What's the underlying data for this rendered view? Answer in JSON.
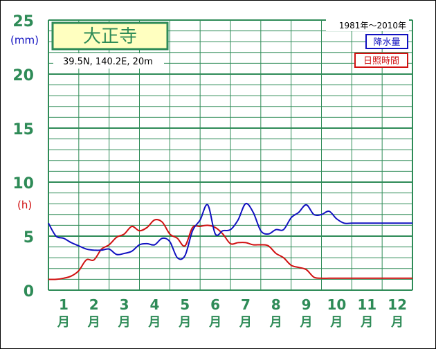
{
  "chart_data": {
    "type": "line",
    "title": "大正寺",
    "subtitle": "39.5N,  140.2E,  20m",
    "period": "1981年〜2010年",
    "categories": [
      "1",
      "2",
      "3",
      "4",
      "5",
      "6",
      "7",
      "8",
      "9",
      "10",
      "11",
      "12"
    ],
    "category_unit": "月",
    "y_unit_left": "(mm)",
    "y_unit_right": "(h)",
    "ylim": [
      0,
      25
    ],
    "yticks": [
      "0",
      "5",
      "10",
      "15",
      "20",
      "25"
    ],
    "grid": true,
    "legend_position": "top-right",
    "series": [
      {
        "name": "降水量",
        "color": "#1010c0",
        "x": [
          0.0,
          0.25,
          0.5,
          0.75,
          1.0,
          1.25,
          1.5,
          1.75,
          2.0,
          2.25,
          2.5,
          2.75,
          3.0,
          3.25,
          3.5,
          3.75,
          4.0,
          4.25,
          4.5,
          4.75,
          5.0,
          5.25,
          5.5,
          5.75,
          6.0,
          6.25,
          6.5,
          6.75,
          7.0,
          7.25,
          7.5,
          7.75,
          8.0,
          8.25,
          8.5,
          8.75,
          9.0,
          9.25,
          9.5,
          9.75,
          10.0,
          10.25,
          10.5,
          10.75,
          11.0,
          11.25,
          11.5,
          11.75,
          12.0
        ],
        "values": [
          6.2,
          5.0,
          4.8,
          4.4,
          4.1,
          3.8,
          3.7,
          3.7,
          3.8,
          3.3,
          3.4,
          3.6,
          4.2,
          4.3,
          4.2,
          4.8,
          4.5,
          3.0,
          3.2,
          5.5,
          6.5,
          7.9,
          5.2,
          5.5,
          5.6,
          6.5,
          8.0,
          7.2,
          5.5,
          5.2,
          5.6,
          5.6,
          6.7,
          7.2,
          7.9,
          7.0,
          7.0,
          7.3,
          6.6,
          6.2,
          6.2,
          6.2,
          6.2,
          6.2,
          6.2,
          6.2,
          6.2,
          6.2,
          6.2
        ]
      },
      {
        "name": "日照時間",
        "color": "#d01010",
        "x": [
          0.0,
          0.25,
          0.5,
          0.75,
          1.0,
          1.25,
          1.5,
          1.75,
          2.0,
          2.25,
          2.5,
          2.75,
          3.0,
          3.25,
          3.5,
          3.75,
          4.0,
          4.25,
          4.5,
          4.75,
          5.0,
          5.25,
          5.5,
          5.75,
          6.0,
          6.25,
          6.5,
          6.75,
          7.0,
          7.25,
          7.5,
          7.75,
          8.0,
          8.25,
          8.5,
          8.75,
          9.0,
          9.25,
          9.5,
          9.75,
          10.0,
          10.25,
          10.5,
          10.75,
          11.0,
          11.25,
          11.5,
          11.75,
          12.0
        ],
        "values": [
          1.0,
          1.0,
          1.1,
          1.3,
          1.8,
          2.8,
          2.8,
          3.8,
          4.2,
          4.9,
          5.2,
          5.9,
          5.5,
          5.8,
          6.5,
          6.3,
          5.2,
          4.8,
          4.1,
          5.8,
          5.9,
          6.0,
          5.8,
          5.2,
          4.3,
          4.4,
          4.4,
          4.2,
          4.2,
          4.1,
          3.4,
          3.0,
          2.3,
          2.1,
          1.9,
          1.2,
          1.1,
          1.1,
          1.1,
          1.1,
          1.1,
          1.1,
          1.1,
          1.1,
          1.1,
          1.1,
          1.1,
          1.1,
          1.1
        ]
      }
    ]
  }
}
